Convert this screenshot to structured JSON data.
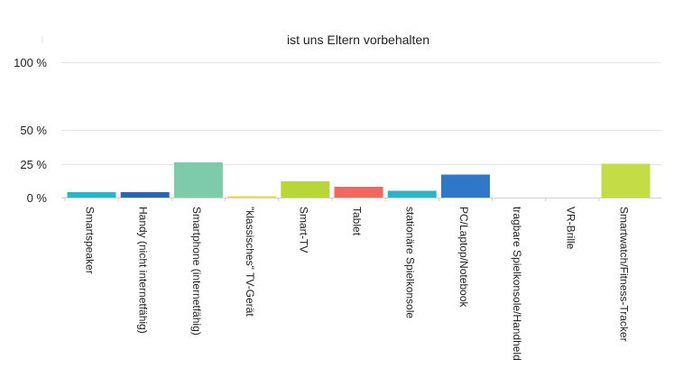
{
  "chart_data": {
    "type": "bar",
    "title": "ist uns Eltern vorbehalten",
    "xlabel": "",
    "ylabel": "",
    "ylim": [
      0,
      100
    ],
    "yticks": [
      0,
      25,
      50,
      100
    ],
    "ytick_labels": [
      "0 %",
      "25 %",
      "50 %",
      "100 %"
    ],
    "grid": true,
    "legend": "none",
    "categories": [
      "Smartspeaker",
      "Handy (nicht internetfähig)",
      "Smartphone (internetfähig)",
      "\"klassisches\" TV-Gerät",
      "Smart-TV",
      "Tablet",
      "stationäre Spielkonsole",
      "PC/Laptop/Notebook",
      "tragbare Spielkonsole/Handheld",
      "VR-Brille",
      "Smartwatch/Fitness-Tracker"
    ],
    "values": [
      4,
      4,
      26,
      1,
      12,
      8,
      5,
      17,
      0,
      0,
      25
    ],
    "colors": [
      "#2ab5c6",
      "#2c64ad",
      "#7ecbab",
      "#f6d53a",
      "#b9d637",
      "#f2675f",
      "#2ab5c6",
      "#2f77c7",
      "#7ecbab",
      "#f6d53a",
      "#c4dc45"
    ]
  }
}
